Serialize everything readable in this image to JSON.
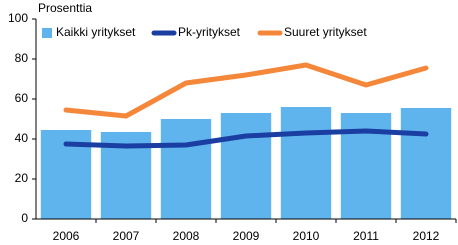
{
  "chart_data": {
    "type": "bar",
    "y_label": "Prosenttia",
    "categories": [
      "2006",
      "2007",
      "2008",
      "2009",
      "2010",
      "2011",
      "2012"
    ],
    "series": [
      {
        "name": "Kaikki yritykset",
        "type": "bar",
        "color": "#5fb4ee",
        "values": [
          44.5,
          43.5,
          50,
          53,
          56,
          53,
          55.5
        ]
      },
      {
        "name": "Pk-yritykset",
        "type": "line",
        "color": "#1b3ea3",
        "values": [
          37.5,
          36.5,
          37,
          41.5,
          43,
          44,
          42.5
        ]
      },
      {
        "name": "Suuret yritykset",
        "type": "line",
        "color": "#f5873b",
        "values": [
          54.5,
          51.5,
          68,
          72,
          77,
          67,
          75.5
        ]
      }
    ],
    "ylim": [
      0,
      100
    ],
    "yticks": [
      0,
      20,
      40,
      60,
      80,
      100
    ],
    "grid": false,
    "legend": "top"
  }
}
